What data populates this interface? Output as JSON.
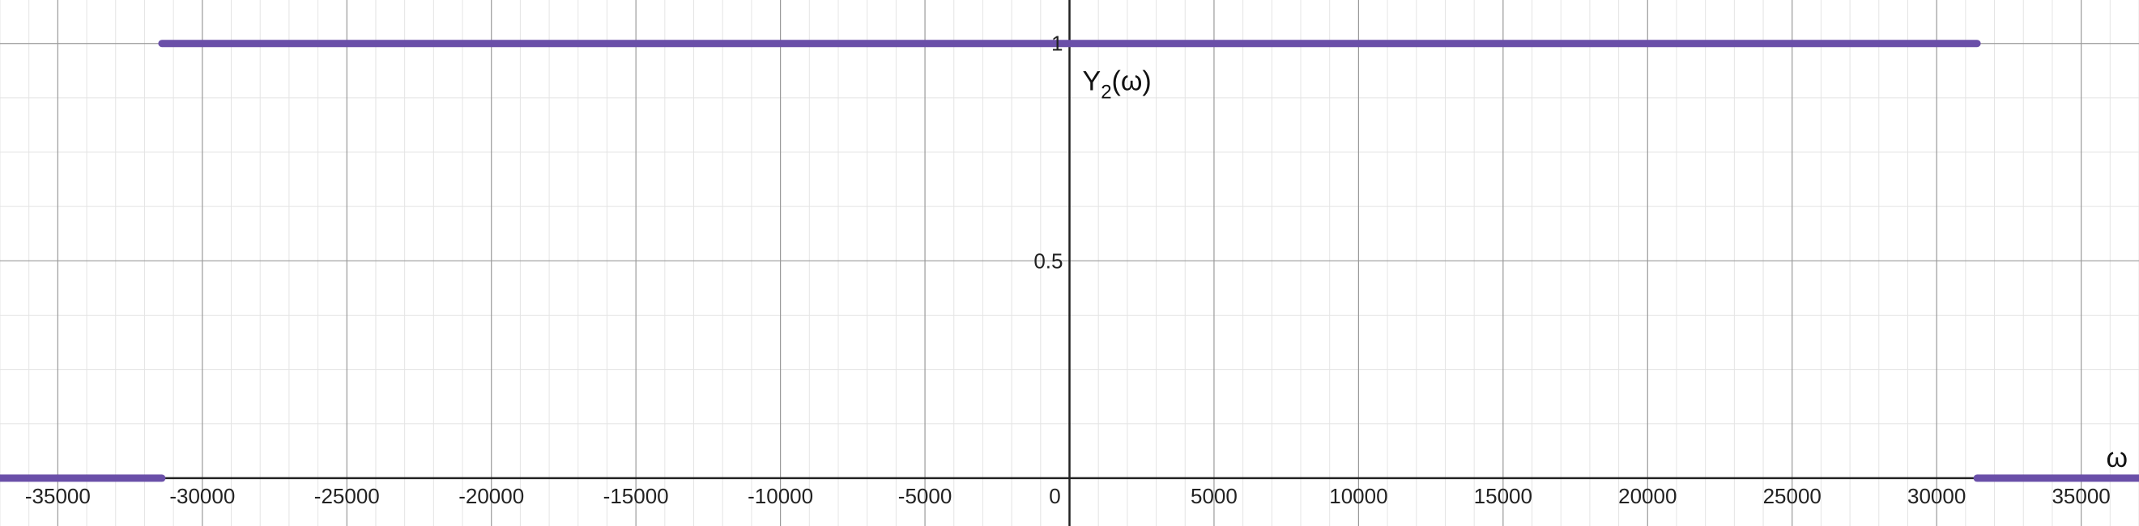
{
  "chart_data": {
    "type": "line",
    "xlabel": "ω",
    "ylabel_main": "Y",
    "ylabel_sub": "2",
    "ylabel_rest": "(ω)",
    "xlim": [
      -37000,
      37000
    ],
    "ylim": [
      -0.11,
      1.1
    ],
    "x_major_step": 5000,
    "x_minor_step": 1000,
    "y_major_step": 0.5,
    "y_minor_step": 0.125,
    "x_tick_labels": [
      "-35000",
      "-30000",
      "-25000",
      "-20000",
      "-15000",
      "-10000",
      "-5000",
      "0",
      "5000",
      "10000",
      "15000",
      "20000",
      "25000",
      "30000",
      "35000"
    ],
    "y_tick_labels": [
      "0.5",
      "1"
    ],
    "grid": true,
    "series": [
      {
        "color": "#6a4fa8",
        "segments": [
          [
            [
              -37000,
              0
            ],
            [
              -31400,
              0
            ]
          ],
          [
            [
              -31400,
              1
            ],
            [
              31400,
              1
            ]
          ],
          [
            [
              31400,
              0
            ],
            [
              37000,
              0
            ]
          ]
        ]
      }
    ]
  }
}
